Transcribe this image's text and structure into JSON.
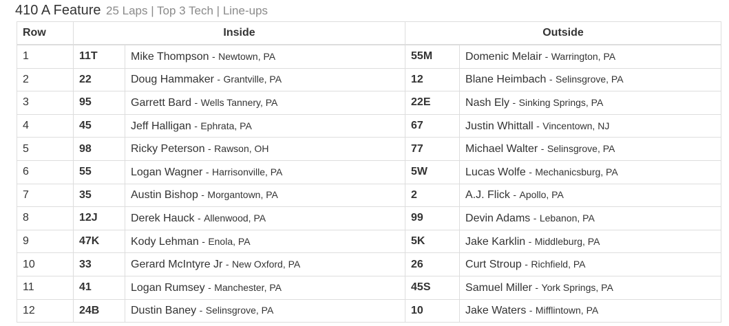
{
  "header": {
    "title": "410 A Feature",
    "subtitle": "25 Laps | Top 3 Tech | Line-ups"
  },
  "table": {
    "columns": {
      "row": "Row",
      "inside": "Inside",
      "outside": "Outside"
    },
    "separator": "-",
    "rows": [
      {
        "row": "1",
        "inside": {
          "car": "11T",
          "driver": "Mike Thompson",
          "hometown": "Newtown, PA"
        },
        "outside": {
          "car": "55M",
          "driver": "Domenic Melair",
          "hometown": "Warrington, PA"
        }
      },
      {
        "row": "2",
        "inside": {
          "car": "22",
          "driver": "Doug Hammaker",
          "hometown": "Grantville, PA"
        },
        "outside": {
          "car": "12",
          "driver": "Blane Heimbach",
          "hometown": "Selinsgrove, PA"
        }
      },
      {
        "row": "3",
        "inside": {
          "car": "95",
          "driver": "Garrett Bard",
          "hometown": "Wells Tannery, PA"
        },
        "outside": {
          "car": "22E",
          "driver": "Nash Ely",
          "hometown": "Sinking Springs, PA"
        }
      },
      {
        "row": "4",
        "inside": {
          "car": "45",
          "driver": "Jeff Halligan",
          "hometown": "Ephrata, PA"
        },
        "outside": {
          "car": "67",
          "driver": "Justin Whittall",
          "hometown": "Vincentown, NJ"
        }
      },
      {
        "row": "5",
        "inside": {
          "car": "98",
          "driver": "Ricky Peterson",
          "hometown": "Rawson, OH"
        },
        "outside": {
          "car": "77",
          "driver": "Michael Walter",
          "hometown": "Selinsgrove, PA"
        }
      },
      {
        "row": "6",
        "inside": {
          "car": "55",
          "driver": "Logan Wagner",
          "hometown": "Harrisonville, PA"
        },
        "outside": {
          "car": "5W",
          "driver": "Lucas Wolfe",
          "hometown": "Mechanicsburg, PA"
        }
      },
      {
        "row": "7",
        "inside": {
          "car": "35",
          "driver": "Austin Bishop",
          "hometown": "Morgantown, PA"
        },
        "outside": {
          "car": "2",
          "driver": "A.J. Flick",
          "hometown": "Apollo, PA"
        }
      },
      {
        "row": "8",
        "inside": {
          "car": "12J",
          "driver": "Derek Hauck",
          "hometown": "Allenwood, PA"
        },
        "outside": {
          "car": "99",
          "driver": "Devin Adams",
          "hometown": "Lebanon, PA"
        }
      },
      {
        "row": "9",
        "inside": {
          "car": "47K",
          "driver": "Kody Lehman",
          "hometown": "Enola, PA"
        },
        "outside": {
          "car": "5K",
          "driver": "Jake Karklin",
          "hometown": "Middleburg, PA"
        }
      },
      {
        "row": "10",
        "inside": {
          "car": "33",
          "driver": "Gerard McIntyre Jr",
          "hometown": "New Oxford, PA"
        },
        "outside": {
          "car": "26",
          "driver": "Curt Stroup",
          "hometown": "Richfield, PA"
        }
      },
      {
        "row": "11",
        "inside": {
          "car": "41",
          "driver": "Logan Rumsey",
          "hometown": "Manchester, PA"
        },
        "outside": {
          "car": "45S",
          "driver": "Samuel Miller",
          "hometown": "York Springs, PA"
        }
      },
      {
        "row": "12",
        "inside": {
          "car": "24B",
          "driver": "Dustin Baney",
          "hometown": "Selinsgrove, PA"
        },
        "outside": {
          "car": "10",
          "driver": "Jake Waters",
          "hometown": "Mifflintown, PA"
        }
      }
    ]
  }
}
